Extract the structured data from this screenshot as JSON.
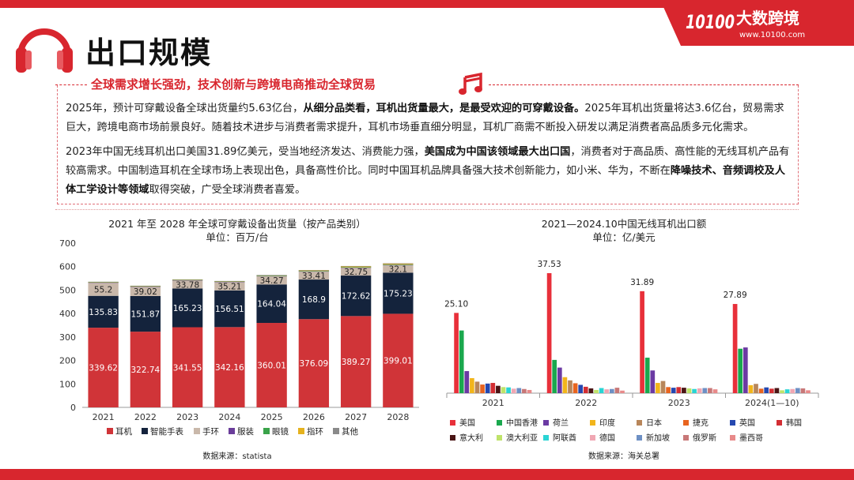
{
  "header": {
    "title": "出口规模",
    "brand_name": "大数跨境",
    "brand_url": "www.10100.com",
    "logo_mark": "10100"
  },
  "subtitle": "全球需求增长强劲，技术创新与跨境电商推动全球贸易",
  "intro": {
    "p1": [
      {
        "t": "2025年，预计可穿戴设备全球出货量约5.63亿台，",
        "b": false
      },
      {
        "t": "从细分品类看，耳机出货量最大，是最受欢迎的可穿戴设备。",
        "b": true
      },
      {
        "t": "2025年耳机出货量将达3.6亿台，贸易需求巨大，跨境电商市场前景良好。随着技术进步与消费者需求提升，耳机市场垂直细分明显，耳机厂商需不断投入研发以满足消费者高品质多元化需求。",
        "b": false
      }
    ],
    "p2": [
      {
        "t": "2023年中国无线耳机出口美国31.89亿美元，受当地经济发达、消费能力强，",
        "b": false
      },
      {
        "t": "美国成为中国该领域最大出口国",
        "b": true
      },
      {
        "t": "，消费者对于高品质、高性能的无线耳机产品有较高需求。中国制造耳机在全球市场上表现出色，具备高性价比。同时中国耳机品牌具备强大技术创新能力，如小米、华为，不断在",
        "b": false
      },
      {
        "t": "降噪技术、音频调校及人体工学设计等领域",
        "b": true
      },
      {
        "t": "取得突破，广受全球消费者喜爱。",
        "b": false
      }
    ]
  },
  "chart_data": [
    {
      "type": "bar",
      "stacked": true,
      "title": "2021 年至 2028 年全球可穿戴设备出货量（按产品类别）",
      "subtitle": "单位：百万/台",
      "categories": [
        "2021",
        "2022",
        "2023",
        "2024",
        "2025",
        "2026",
        "2027",
        "2028"
      ],
      "ylim": [
        0,
        700
      ],
      "yticks": [
        0,
        100,
        200,
        300,
        400,
        500,
        600,
        700
      ],
      "series": [
        {
          "name": "耳机",
          "color": "#d03438",
          "values": [
            339.62,
            322.74,
            341.55,
            342.16,
            360.01,
            376.09,
            389.27,
            399.01
          ],
          "labels": [
            "339.62",
            "322.74",
            "341.55",
            "342.16",
            "360.01",
            "376.09",
            "389.27",
            "399.01"
          ]
        },
        {
          "name": "智能手表",
          "color": "#14233c",
          "values": [
            135.83,
            151.87,
            165.23,
            156.51,
            164.04,
            168.9,
            172.62,
            175.23
          ],
          "labels": [
            "135.83",
            "151.87",
            "165.23",
            "156.51",
            "164.04",
            "168.9",
            "172.62",
            "175.23"
          ]
        },
        {
          "name": "手环",
          "color": "#c9b8aa",
          "values": [
            55.2,
            39.02,
            33.78,
            35.21,
            34.27,
            33.41,
            32.75,
            32.1
          ],
          "labels": [
            "55.2",
            "39.02",
            "33.78",
            "35.21",
            "34.27",
            "33.41",
            "32.75",
            "32.1"
          ]
        },
        {
          "name": "服装",
          "color": "#6a3d9a",
          "values": [
            2,
            2,
            2,
            2,
            2,
            2,
            2,
            2
          ]
        },
        {
          "name": "眼镜",
          "color": "#3aa34a",
          "values": [
            1,
            1,
            1,
            1,
            1,
            1,
            1,
            1
          ]
        },
        {
          "name": "指环",
          "color": "#e5b21e",
          "values": [
            1,
            1,
            1,
            1,
            2,
            3,
            4,
            4
          ]
        },
        {
          "name": "其他",
          "color": "#8a8a8a",
          "values": [
            1,
            1,
            1,
            1,
            1,
            1,
            1,
            1
          ]
        }
      ],
      "legend_position": "bottom",
      "source": "数据来源：statista"
    },
    {
      "type": "bar",
      "grouped": true,
      "title": "2021—2024.10中国无线耳机出口额",
      "subtitle": "单位：亿/美元",
      "categories": [
        "2021",
        "2022",
        "2023",
        "2024(1—10)"
      ],
      "ylim": [
        0,
        40
      ],
      "top_labels": [
        "25.10",
        "37.53",
        "31.89",
        "27.89"
      ],
      "series": [
        {
          "name": "美国",
          "color": "#e8303a",
          "values": [
            25.1,
            37.53,
            31.89,
            27.89
          ]
        },
        {
          "name": "中国香港",
          "color": "#1aa84e",
          "values": [
            19.6,
            10.4,
            11.1,
            13.9
          ]
        },
        {
          "name": "荷兰",
          "color": "#6b3aa3",
          "values": [
            6.9,
            8.0,
            7.1,
            14.3
          ]
        },
        {
          "name": "印度",
          "color": "#f2b51b",
          "values": [
            4.7,
            5.0,
            3.2,
            2.5
          ]
        },
        {
          "name": "日本",
          "color": "#b8865a",
          "values": [
            3.6,
            4.0,
            3.8,
            2.9
          ]
        },
        {
          "name": "捷克",
          "color": "#e8641f",
          "values": [
            2.7,
            3.1,
            1.9,
            1.4
          ]
        },
        {
          "name": "英国",
          "color": "#2548b0",
          "values": [
            3.0,
            2.6,
            1.7,
            1.8
          ]
        },
        {
          "name": "韩国",
          "color": "#d32e33",
          "values": [
            3.2,
            2.0,
            1.9,
            1.4
          ]
        },
        {
          "name": "意大利",
          "color": "#4a1515",
          "values": [
            2.3,
            1.5,
            1.7,
            1.6
          ]
        },
        {
          "name": "澳大利亚",
          "color": "#bfe36a",
          "values": [
            1.9,
            1.0,
            1.5,
            0.9
          ]
        },
        {
          "name": "阿联酋",
          "color": "#2ad4d4",
          "values": [
            1.8,
            1.6,
            1.3,
            1.2
          ]
        },
        {
          "name": "德国",
          "color": "#f0a7b3",
          "values": [
            1.4,
            1.2,
            1.5,
            1.3
          ]
        },
        {
          "name": "新加坡",
          "color": "#6e90c4",
          "values": [
            1.6,
            1.3,
            1.6,
            1.6
          ]
        },
        {
          "name": "俄罗斯",
          "color": "#c87878",
          "values": [
            1.3,
            1.7,
            1.6,
            1.5
          ]
        },
        {
          "name": "墨西哥",
          "color": "#e88a8a",
          "values": [
            1.0,
            0.8,
            1.2,
            0.9
          ]
        }
      ],
      "legend_position": "bottom",
      "source": "数据来源：海关总署"
    }
  ]
}
